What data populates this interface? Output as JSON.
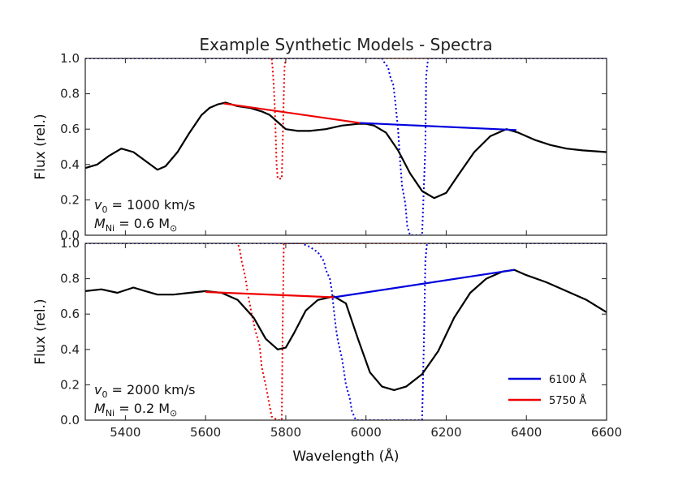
{
  "title": "Example Synthetic Models - Spectra",
  "xlabel": "Wavelength (Å)",
  "chart_data": {
    "type": "line",
    "title": "Example Synthetic Models - Spectra",
    "xlim": [
      5300,
      6600
    ],
    "ylim": [
      0.0,
      1.0
    ],
    "x_ticks": [
      5400,
      5600,
      5800,
      6000,
      6200,
      6400,
      6600
    ],
    "y_ticks": [
      0.0,
      0.2,
      0.4,
      0.6,
      0.8,
      1.0
    ],
    "legend": {
      "placement": "lower-right",
      "entries": [
        {
          "label": "6100 Å",
          "color": "#0000dd"
        },
        {
          "label": "5750 Å",
          "color": "#ee0000"
        }
      ]
    },
    "panels": [
      {
        "ylabel": "Flux (rel.)",
        "annotation": {
          "line1_v": "v",
          "line1_sub": "0",
          "line1_rest": " = 1000 km/s",
          "line2_m": "M",
          "line2_sub": "Ni",
          "line2_rest": " = 0.6 M",
          "sun_symbol": "⊙"
        },
        "spectrum": {
          "color": "#000000",
          "x": [
            5300,
            5330,
            5360,
            5390,
            5420,
            5450,
            5480,
            5500,
            5530,
            5560,
            5590,
            5610,
            5630,
            5650,
            5680,
            5710,
            5740,
            5760,
            5780,
            5800,
            5830,
            5860,
            5900,
            5940,
            5980,
            6000,
            6020,
            6050,
            6080,
            6110,
            6140,
            6170,
            6200,
            6230,
            6270,
            6310,
            6350,
            6380,
            6420,
            6460,
            6500,
            6540,
            6600
          ],
          "y": [
            0.38,
            0.4,
            0.45,
            0.49,
            0.47,
            0.42,
            0.37,
            0.39,
            0.47,
            0.58,
            0.68,
            0.72,
            0.74,
            0.75,
            0.73,
            0.72,
            0.7,
            0.68,
            0.64,
            0.6,
            0.59,
            0.59,
            0.6,
            0.62,
            0.63,
            0.63,
            0.62,
            0.58,
            0.48,
            0.35,
            0.25,
            0.21,
            0.24,
            0.34,
            0.47,
            0.56,
            0.6,
            0.58,
            0.54,
            0.51,
            0.49,
            0.48,
            0.47
          ]
        },
        "continuum_fits": [
          {
            "name": "5750 Å",
            "color": "#ee0000",
            "x": [
              5645,
              5985
            ],
            "y": [
              0.745,
              0.635
            ]
          },
          {
            "name": "6100 Å",
            "color": "#0000dd",
            "x": [
              5985,
              6375
            ],
            "y": [
              0.635,
              0.595
            ]
          }
        ],
        "optical_depth_profiles": [
          {
            "name": "5750 Å",
            "color": "#ee0000",
            "x": [
              5300,
              5765,
              5767,
              5770,
              5773,
              5775,
              5777,
              5780,
              5790,
              5792,
              5795,
              5797,
              5800,
              6600
            ],
            "y": [
              1.0,
              1.0,
              0.95,
              0.85,
              0.7,
              0.55,
              0.4,
              0.32,
              0.32,
              0.5,
              0.8,
              0.95,
              1.0,
              1.0
            ]
          },
          {
            "name": "6100 Å",
            "color": "#0000dd",
            "x": [
              5300,
              6040,
              6045,
              6055,
              6060,
              6068,
              6072,
              6080,
              6085,
              6090,
              6098,
              6103,
              6110,
              6140,
              6148,
              6150,
              6155,
              6600
            ],
            "y": [
              1.0,
              1.0,
              0.98,
              0.95,
              0.9,
              0.85,
              0.78,
              0.6,
              0.42,
              0.28,
              0.18,
              0.05,
              0.0,
              0.0,
              0.5,
              0.9,
              1.0,
              1.0
            ]
          }
        ]
      },
      {
        "ylabel": "Flux (rel.)",
        "annotation": {
          "line1_v": "v",
          "line1_sub": "0",
          "line1_rest": " = 2000 km/s",
          "line2_m": "M",
          "line2_sub": "Ni",
          "line2_rest": " = 0.2 M",
          "sun_symbol": "⊙"
        },
        "spectrum": {
          "color": "#000000",
          "x": [
            5300,
            5340,
            5380,
            5420,
            5450,
            5480,
            5520,
            5560,
            5600,
            5640,
            5680,
            5720,
            5750,
            5780,
            5800,
            5820,
            5850,
            5880,
            5920,
            5950,
            5980,
            6010,
            6040,
            6070,
            6100,
            6140,
            6180,
            6220,
            6260,
            6300,
            6340,
            6370,
            6400,
            6450,
            6500,
            6550,
            6600
          ],
          "y": [
            0.73,
            0.74,
            0.72,
            0.75,
            0.73,
            0.71,
            0.71,
            0.72,
            0.73,
            0.72,
            0.68,
            0.58,
            0.46,
            0.4,
            0.41,
            0.49,
            0.62,
            0.68,
            0.7,
            0.66,
            0.46,
            0.27,
            0.19,
            0.17,
            0.19,
            0.26,
            0.39,
            0.58,
            0.72,
            0.8,
            0.84,
            0.85,
            0.82,
            0.78,
            0.73,
            0.68,
            0.61
          ]
        },
        "continuum_fits": [
          {
            "name": "5750 Å",
            "color": "#ee0000",
            "x": [
              5600,
              5920
            ],
            "y": [
              0.725,
              0.695
            ]
          },
          {
            "name": "6100 Å",
            "color": "#0000dd",
            "x": [
              5920,
              6370
            ],
            "y": [
              0.695,
              0.85
            ]
          }
        ],
        "optical_depth_profiles": [
          {
            "name": "5750 Å",
            "color": "#ee0000",
            "x": [
              5300,
              5680,
              5685,
              5690,
              5700,
              5705,
              5715,
              5725,
              5735,
              5740,
              5750,
              5758,
              5765,
              5780,
              5790,
              5792,
              5795,
              6600
            ],
            "y": [
              1.0,
              1.0,
              0.97,
              0.9,
              0.8,
              0.72,
              0.6,
              0.5,
              0.42,
              0.3,
              0.2,
              0.1,
              0.02,
              0.0,
              0.0,
              0.5,
              1.0,
              1.0
            ]
          },
          {
            "name": "6100 Å",
            "color": "#0000dd",
            "x": [
              5300,
              5840,
              5860,
              5880,
              5895,
              5900,
              5910,
              5915,
              5920,
              5925,
              5930,
              5935,
              5940,
              5945,
              5950,
              5960,
              5965,
              5975,
              6140,
              6145,
              6148,
              6152,
              6600
            ],
            "y": [
              1.0,
              1.0,
              0.98,
              0.95,
              0.9,
              0.85,
              0.8,
              0.73,
              0.62,
              0.52,
              0.45,
              0.4,
              0.35,
              0.28,
              0.2,
              0.12,
              0.05,
              0.0,
              0.0,
              0.5,
              0.9,
              1.0,
              1.0
            ]
          }
        ]
      }
    ]
  }
}
